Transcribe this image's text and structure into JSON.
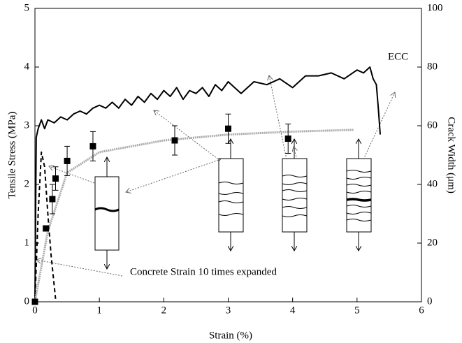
{
  "chart_data": {
    "type": "line",
    "x_label": "Strain (%)",
    "y_label": "Tensile Stress (MPa)",
    "y2_label": "Crack Width (μm)",
    "annotations": [
      "ECC",
      "Concrete Strain 10 times expanded"
    ],
    "xlim": [
      0,
      6
    ],
    "xticks": [
      0,
      1,
      2,
      3,
      4,
      5,
      6
    ],
    "ylim": [
      0,
      5
    ],
    "yticks": [
      0,
      1,
      2,
      3,
      4,
      5
    ],
    "y2lim": [
      0,
      100
    ],
    "y2ticks": [
      0,
      20,
      40,
      60,
      80,
      100
    ],
    "series": [
      {
        "style": "solid",
        "color": "#000000",
        "x": [
          0,
          0.02,
          0.05,
          0.1,
          0.15,
          0.2,
          0.3,
          0.4,
          0.5,
          0.6,
          0.7,
          0.8,
          0.9,
          1.0,
          1.1,
          1.2,
          1.3,
          1.4,
          1.5,
          1.6,
          1.7,
          1.8,
          1.9,
          2.0,
          2.1,
          2.2,
          2.3,
          2.4,
          2.5,
          2.6,
          2.7,
          2.8,
          2.9,
          3.0,
          3.2,
          3.4,
          3.6,
          3.8,
          4.0,
          4.2,
          4.4,
          4.6,
          4.8,
          5.0,
          5.1,
          5.2,
          5.25,
          5.3,
          5.33,
          5.36
        ],
        "values": [
          0,
          2.8,
          2.95,
          3.1,
          2.95,
          3.1,
          3.05,
          3.15,
          3.1,
          3.2,
          3.25,
          3.2,
          3.3,
          3.35,
          3.3,
          3.4,
          3.3,
          3.45,
          3.35,
          3.5,
          3.4,
          3.55,
          3.45,
          3.6,
          3.5,
          3.65,
          3.45,
          3.6,
          3.55,
          3.65,
          3.5,
          3.7,
          3.6,
          3.75,
          3.55,
          3.75,
          3.7,
          3.8,
          3.65,
          3.85,
          3.85,
          3.9,
          3.8,
          3.95,
          3.9,
          4.0,
          3.8,
          3.7,
          3.3,
          2.85
        ]
      },
      {
        "style": "dashed",
        "color": "#000000",
        "x": [
          0,
          0.05,
          0.1,
          0.15,
          0.2,
          0.25,
          0.32
        ],
        "values": [
          0,
          1.5,
          2.55,
          2.3,
          1.5,
          0.8,
          0.05
        ]
      },
      {
        "style": "dotted",
        "color": "#aaaaaa",
        "axis": "y2",
        "x": [
          0,
          0.2,
          0.5,
          1,
          2,
          3,
          4,
          4.95
        ],
        "values": [
          0,
          24,
          44,
          51,
          55,
          57,
          58,
          58.6
        ]
      },
      {
        "style": "markers",
        "color": "#000000",
        "axis": "y2",
        "x": [
          0,
          0.17,
          0.27,
          0.32,
          0.5,
          0.9,
          2.17,
          3.0,
          3.93
        ],
        "values": [
          0,
          25,
          35,
          42,
          48,
          53,
          55,
          59,
          55.6
        ],
        "errors": [
          0,
          0,
          5,
          4,
          5,
          5,
          5,
          5,
          5
        ]
      }
    ]
  }
}
